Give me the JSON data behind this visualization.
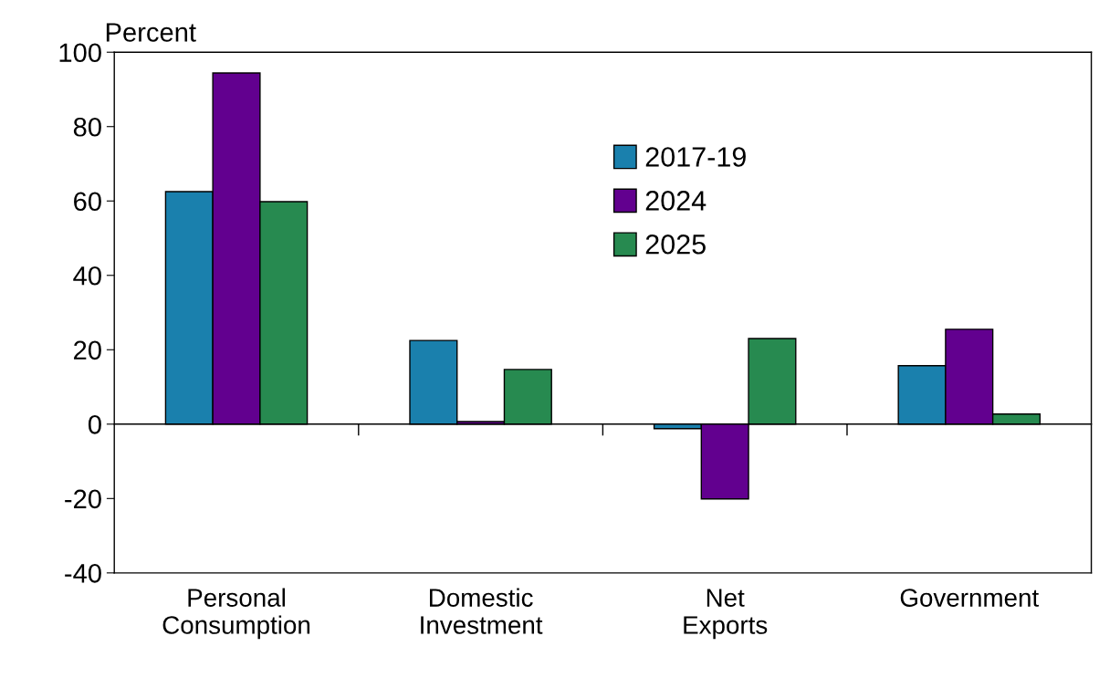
{
  "chart_data": {
    "type": "bar",
    "ylabel": "Percent",
    "categories": [
      "Personal\nConsumption",
      "Domestic\nInvestment",
      "Net\nExports",
      "Government"
    ],
    "series": [
      {
        "name": "2017-19",
        "color": "#1a80ad",
        "values": [
          62.5,
          22.5,
          -1.2,
          15.7
        ]
      },
      {
        "name": "2024",
        "color": "#62008f",
        "values": [
          94.4,
          0.7,
          -20.1,
          25.5
        ]
      },
      {
        "name": "2025",
        "color": "#278a50",
        "values": [
          59.8,
          14.7,
          23.0,
          2.7
        ]
      }
    ],
    "ylim": [
      -40,
      100
    ],
    "yticks": [
      -40,
      -20,
      0,
      20,
      40,
      60,
      80,
      100
    ],
    "legend": "top right"
  }
}
